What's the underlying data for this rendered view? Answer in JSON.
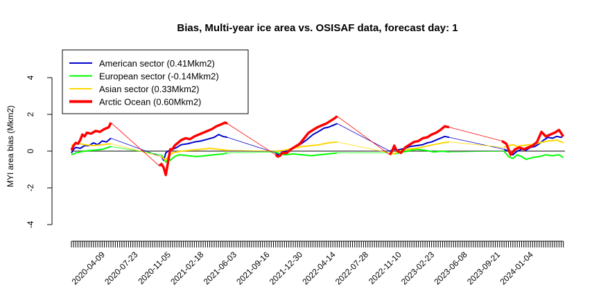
{
  "chart_data": {
    "type": "line",
    "title": "Bias, Multi-year ice area vs. OSISAF data, forecast day: 1",
    "xlabel": "",
    "ylabel": "MYI area bias (Mkm2)",
    "ylim": [
      -4,
      4
    ],
    "yticks": [
      "-4",
      "-2",
      "0",
      "2",
      "4"
    ],
    "xlim": [
      "2020-01-01",
      "2024-04-22"
    ],
    "xtick_labels": [
      "2020-04-09",
      "2020-07-23",
      "2020-11-05",
      "2021-02-18",
      "2021-06-03",
      "2021-09-16",
      "2021-12-30",
      "2022-04-14",
      "2022-07-28",
      "2022-11-10",
      "2023-02-23",
      "2023-06-08",
      "2023-09-21",
      "2024-01-04"
    ],
    "minor_tick_interval_days": 7,
    "zero_line": true,
    "legend_position": "top-left",
    "series": [
      {
        "name": "American sector (0.41Mkm2)",
        "color": "#0000cc",
        "points": [
          [
            "2020-01-01",
            -0.1
          ],
          [
            "2020-01-08",
            0.1
          ],
          [
            "2020-01-15",
            0.2
          ],
          [
            "2020-01-29",
            0.15
          ],
          [
            "2020-02-12",
            0.3
          ],
          [
            "2020-02-26",
            0.3
          ],
          [
            "2020-03-11",
            0.45
          ],
          [
            "2020-03-25",
            0.35
          ],
          [
            "2020-04-08",
            0.55
          ],
          [
            "2020-04-22",
            0.5
          ],
          [
            "2020-05-06",
            0.7
          ],
          [
            "2020-10-14",
            -0.3
          ],
          [
            "2020-10-21",
            -0.5
          ],
          [
            "2020-10-28",
            -0.1
          ],
          [
            "2020-11-04",
            0.0
          ],
          [
            "2020-11-18",
            0.1
          ],
          [
            "2020-12-02",
            0.2
          ],
          [
            "2020-12-16",
            0.35
          ],
          [
            "2021-01-06",
            0.4
          ],
          [
            "2021-01-27",
            0.5
          ],
          [
            "2021-02-17",
            0.55
          ],
          [
            "2021-03-10",
            0.65
          ],
          [
            "2021-03-31",
            0.75
          ],
          [
            "2021-04-14",
            0.9
          ],
          [
            "2021-04-28",
            0.8
          ],
          [
            "2021-05-12",
            0.75
          ],
          [
            "2021-10-13",
            -0.1
          ],
          [
            "2021-10-20",
            -0.2
          ],
          [
            "2021-10-27",
            -0.15
          ],
          [
            "2021-11-03",
            -0.05
          ],
          [
            "2021-11-17",
            0.0
          ],
          [
            "2021-12-01",
            0.1
          ],
          [
            "2021-12-15",
            0.2
          ],
          [
            "2021-12-29",
            0.35
          ],
          [
            "2022-01-19",
            0.6
          ],
          [
            "2022-02-09",
            0.9
          ],
          [
            "2022-03-02",
            1.1
          ],
          [
            "2022-03-16",
            1.25
          ],
          [
            "2022-03-30",
            1.3
          ],
          [
            "2022-04-13",
            1.4
          ],
          [
            "2022-04-27",
            1.5
          ],
          [
            "2022-10-12",
            0.0
          ],
          [
            "2022-10-19",
            0.05
          ],
          [
            "2022-10-26",
            0.1
          ],
          [
            "2022-11-02",
            0.05
          ],
          [
            "2022-11-16",
            0.1
          ],
          [
            "2022-11-30",
            0.15
          ],
          [
            "2022-12-14",
            0.25
          ],
          [
            "2023-01-04",
            0.3
          ],
          [
            "2023-01-25",
            0.35
          ],
          [
            "2023-02-08",
            0.45
          ],
          [
            "2023-02-22",
            0.5
          ],
          [
            "2023-03-08",
            0.6
          ],
          [
            "2023-03-22",
            0.7
          ],
          [
            "2023-04-05",
            0.8
          ],
          [
            "2023-04-19",
            0.75
          ],
          [
            "2023-10-11",
            0.1
          ],
          [
            "2023-10-25",
            0.0
          ],
          [
            "2023-11-08",
            -0.2
          ],
          [
            "2023-11-22",
            0.0
          ],
          [
            "2023-12-06",
            0.1
          ],
          [
            "2023-12-20",
            0.05
          ],
          [
            "2024-01-03",
            0.2
          ],
          [
            "2024-01-17",
            0.25
          ],
          [
            "2024-01-31",
            0.4
          ],
          [
            "2024-02-14",
            0.6
          ],
          [
            "2024-02-28",
            0.75
          ],
          [
            "2024-03-13",
            0.7
          ],
          [
            "2024-03-27",
            0.8
          ],
          [
            "2024-04-10",
            0.75
          ],
          [
            "2024-04-17",
            0.85
          ]
        ]
      },
      {
        "name": "European sector (-0.14Mkm2)",
        "color": "#00ff00",
        "points": [
          [
            "2020-01-01",
            -0.2
          ],
          [
            "2020-01-15",
            -0.1
          ],
          [
            "2020-01-29",
            -0.05
          ],
          [
            "2020-02-12",
            0.0
          ],
          [
            "2020-03-11",
            0.05
          ],
          [
            "2020-04-08",
            0.1
          ],
          [
            "2020-05-06",
            0.25
          ],
          [
            "2020-10-14",
            -0.2
          ],
          [
            "2020-10-28",
            -0.6
          ],
          [
            "2020-11-04",
            -0.3
          ],
          [
            "2020-11-11",
            -0.5
          ],
          [
            "2020-11-25",
            -0.3
          ],
          [
            "2020-12-09",
            -0.2
          ],
          [
            "2021-01-06",
            -0.25
          ],
          [
            "2021-02-03",
            -0.3
          ],
          [
            "2021-03-03",
            -0.25
          ],
          [
            "2021-03-31",
            -0.2
          ],
          [
            "2021-04-28",
            -0.15
          ],
          [
            "2021-05-12",
            -0.1
          ],
          [
            "2021-10-13",
            -0.05
          ],
          [
            "2021-10-27",
            -0.15
          ],
          [
            "2021-11-10",
            -0.2
          ],
          [
            "2021-12-08",
            -0.15
          ],
          [
            "2022-01-05",
            -0.2
          ],
          [
            "2022-02-02",
            -0.25
          ],
          [
            "2022-03-02",
            -0.2
          ],
          [
            "2022-03-30",
            -0.15
          ],
          [
            "2022-04-27",
            -0.1
          ],
          [
            "2022-10-12",
            -0.1
          ],
          [
            "2022-10-26",
            -0.15
          ],
          [
            "2022-11-09",
            -0.1
          ],
          [
            "2022-12-07",
            0.0
          ],
          [
            "2023-01-04",
            0.1
          ],
          [
            "2023-02-01",
            0.05
          ],
          [
            "2023-03-01",
            -0.05
          ],
          [
            "2023-03-29",
            0.0
          ],
          [
            "2023-04-19",
            -0.05
          ],
          [
            "2023-10-11",
            0.0
          ],
          [
            "2023-10-25",
            -0.3
          ],
          [
            "2023-11-08",
            -0.4
          ],
          [
            "2023-11-22",
            -0.2
          ],
          [
            "2023-12-06",
            -0.3
          ],
          [
            "2023-12-20",
            -0.45
          ],
          [
            "2024-01-10",
            -0.35
          ],
          [
            "2024-01-31",
            -0.3
          ],
          [
            "2024-02-21",
            -0.2
          ],
          [
            "2024-03-13",
            -0.25
          ],
          [
            "2024-04-03",
            -0.2
          ],
          [
            "2024-04-17",
            -0.35
          ]
        ]
      },
      {
        "name": "Asian sector (0.33Mkm2)",
        "color": "#ffd700",
        "points": [
          [
            "2020-01-01",
            0.3
          ],
          [
            "2020-01-15",
            0.45
          ],
          [
            "2020-01-29",
            0.4
          ],
          [
            "2020-02-12",
            0.35
          ],
          [
            "2020-03-11",
            0.3
          ],
          [
            "2020-04-08",
            0.35
          ],
          [
            "2020-05-06",
            0.4
          ],
          [
            "2020-10-14",
            -0.3
          ],
          [
            "2020-10-28",
            -0.5
          ],
          [
            "2020-11-04",
            -0.3
          ],
          [
            "2020-11-18",
            -0.1
          ],
          [
            "2020-12-16",
            0.0
          ],
          [
            "2021-01-13",
            0.05
          ],
          [
            "2021-02-17",
            0.1
          ],
          [
            "2021-03-17",
            0.15
          ],
          [
            "2021-04-14",
            0.1
          ],
          [
            "2021-05-12",
            0.05
          ],
          [
            "2021-10-13",
            0.0
          ],
          [
            "2021-11-10",
            0.05
          ],
          [
            "2021-12-08",
            0.15
          ],
          [
            "2022-01-05",
            0.25
          ],
          [
            "2022-02-02",
            0.3
          ],
          [
            "2022-03-02",
            0.35
          ],
          [
            "2022-03-30",
            0.45
          ],
          [
            "2022-04-27",
            0.5
          ],
          [
            "2022-10-12",
            -0.1
          ],
          [
            "2022-10-26",
            -0.15
          ],
          [
            "2022-11-09",
            0.0
          ],
          [
            "2022-12-07",
            0.1
          ],
          [
            "2023-01-04",
            0.15
          ],
          [
            "2023-02-01",
            0.25
          ],
          [
            "2023-03-01",
            0.35
          ],
          [
            "2023-03-29",
            0.45
          ],
          [
            "2023-04-19",
            0.5
          ],
          [
            "2023-10-11",
            0.2
          ],
          [
            "2023-10-25",
            0.3
          ],
          [
            "2023-11-08",
            0.35
          ],
          [
            "2023-11-22",
            0.25
          ],
          [
            "2023-12-06",
            0.3
          ],
          [
            "2024-01-03",
            0.35
          ],
          [
            "2024-01-31",
            0.45
          ],
          [
            "2024-02-28",
            0.55
          ],
          [
            "2024-03-27",
            0.6
          ],
          [
            "2024-04-17",
            0.45
          ]
        ]
      },
      {
        "name": "Arctic Ocean (0.60Mkm2)",
        "color": "#ff0000",
        "points": [
          [
            "2020-01-01",
            0.05
          ],
          [
            "2020-01-08",
            0.3
          ],
          [
            "2020-01-15",
            0.45
          ],
          [
            "2020-01-22",
            0.4
          ],
          [
            "2020-01-29",
            0.6
          ],
          [
            "2020-02-05",
            0.9
          ],
          [
            "2020-02-12",
            0.8
          ],
          [
            "2020-02-19",
            1.0
          ],
          [
            "2020-03-04",
            0.95
          ],
          [
            "2020-03-18",
            1.1
          ],
          [
            "2020-04-01",
            1.05
          ],
          [
            "2020-04-15",
            1.2
          ],
          [
            "2020-04-29",
            1.3
          ],
          [
            "2020-05-06",
            1.55
          ],
          [
            "2020-10-07",
            -0.8
          ],
          [
            "2020-10-14",
            -0.7
          ],
          [
            "2020-10-21",
            -0.9
          ],
          [
            "2020-10-28",
            -1.3
          ],
          [
            "2020-11-04",
            -0.6
          ],
          [
            "2020-11-11",
            0.1
          ],
          [
            "2020-11-18",
            0.1
          ],
          [
            "2020-11-25",
            0.3
          ],
          [
            "2020-12-02",
            0.4
          ],
          [
            "2020-12-16",
            0.6
          ],
          [
            "2020-12-30",
            0.7
          ],
          [
            "2021-01-13",
            0.65
          ],
          [
            "2021-01-27",
            0.8
          ],
          [
            "2021-02-10",
            0.9
          ],
          [
            "2021-02-24",
            1.0
          ],
          [
            "2021-03-10",
            1.1
          ],
          [
            "2021-03-24",
            1.2
          ],
          [
            "2021-04-07",
            1.35
          ],
          [
            "2021-04-21",
            1.45
          ],
          [
            "2021-05-05",
            1.55
          ],
          [
            "2021-05-12",
            1.5
          ],
          [
            "2021-10-13",
            -0.2
          ],
          [
            "2021-10-20",
            -0.3
          ],
          [
            "2021-10-27",
            -0.25
          ],
          [
            "2021-11-03",
            -0.1
          ],
          [
            "2021-11-17",
            -0.1
          ],
          [
            "2021-12-01",
            0.1
          ],
          [
            "2021-12-15",
            0.25
          ],
          [
            "2021-12-29",
            0.4
          ],
          [
            "2022-01-12",
            0.7
          ],
          [
            "2022-01-26",
            1.0
          ],
          [
            "2022-02-09",
            1.15
          ],
          [
            "2022-02-23",
            1.3
          ],
          [
            "2022-03-09",
            1.4
          ],
          [
            "2022-03-23",
            1.5
          ],
          [
            "2022-04-06",
            1.65
          ],
          [
            "2022-04-20",
            1.8
          ],
          [
            "2022-04-27",
            1.9
          ],
          [
            "2022-10-12",
            -0.2
          ],
          [
            "2022-10-19",
            0.0
          ],
          [
            "2022-10-26",
            0.3
          ],
          [
            "2022-11-02",
            0.05
          ],
          [
            "2022-11-16",
            -0.1
          ],
          [
            "2022-11-30",
            0.2
          ],
          [
            "2022-12-14",
            0.35
          ],
          [
            "2022-12-28",
            0.5
          ],
          [
            "2023-01-11",
            0.55
          ],
          [
            "2023-01-25",
            0.7
          ],
          [
            "2023-02-08",
            0.75
          ],
          [
            "2023-02-22",
            0.9
          ],
          [
            "2023-03-08",
            1.0
          ],
          [
            "2023-03-22",
            1.15
          ],
          [
            "2023-04-05",
            1.35
          ],
          [
            "2023-04-19",
            1.3
          ],
          [
            "2023-10-04",
            0.55
          ],
          [
            "2023-10-18",
            0.4
          ],
          [
            "2023-11-01",
            -0.2
          ],
          [
            "2023-11-15",
            0.1
          ],
          [
            "2023-11-29",
            0.2
          ],
          [
            "2023-12-13",
            0.1
          ],
          [
            "2023-12-27",
            0.2
          ],
          [
            "2024-01-10",
            0.3
          ],
          [
            "2024-01-24",
            0.5
          ],
          [
            "2024-02-07",
            1.05
          ],
          [
            "2024-02-21",
            0.8
          ],
          [
            "2024-03-06",
            0.9
          ],
          [
            "2024-03-20",
            1.0
          ],
          [
            "2024-04-03",
            1.15
          ],
          [
            "2024-04-17",
            0.8
          ]
        ]
      }
    ]
  }
}
